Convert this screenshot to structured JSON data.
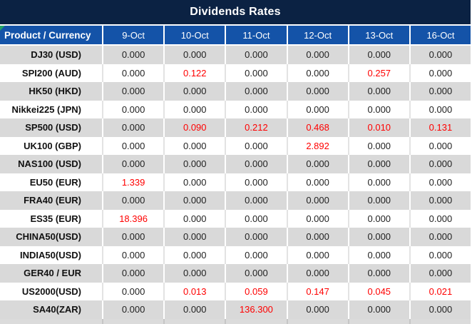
{
  "title": "Dividends Rates",
  "colors": {
    "title_bg": "#0b2243",
    "header_bg": "#1453a8",
    "row_gray_bg": "#d9d9d9",
    "row_white_bg": "#ffffff",
    "highlight_value": "#ff0000",
    "value_text": "#1f1f1f",
    "corner_indicator_green": "#21a366"
  },
  "table": {
    "label_header": "Product / Currency",
    "date_headers": [
      "9-Oct",
      "10-Oct",
      "11-Oct",
      "12-Oct",
      "13-Oct",
      "16-Oct"
    ],
    "rows": [
      {
        "label": "DJ30 (USD)",
        "values": [
          "0.000",
          "0.000",
          "0.000",
          "0.000",
          "0.000",
          "0.000"
        ],
        "red_cols": []
      },
      {
        "label": "SPI200 (AUD)",
        "values": [
          "0.000",
          "0.122",
          "0.000",
          "0.000",
          "0.257",
          "0.000"
        ],
        "red_cols": [
          1,
          4
        ]
      },
      {
        "label": "HK50 (HKD)",
        "values": [
          "0.000",
          "0.000",
          "0.000",
          "0.000",
          "0.000",
          "0.000"
        ],
        "red_cols": []
      },
      {
        "label": "Nikkei225 (JPN)",
        "values": [
          "0.000",
          "0.000",
          "0.000",
          "0.000",
          "0.000",
          "0.000"
        ],
        "red_cols": []
      },
      {
        "label": "SP500 (USD)",
        "values": [
          "0.000",
          "0.090",
          "0.212",
          "0.468",
          "0.010",
          "0.131"
        ],
        "red_cols": [
          1,
          2,
          3,
          4,
          5
        ]
      },
      {
        "label": "UK100 (GBP)",
        "values": [
          "0.000",
          "0.000",
          "0.000",
          "2.892",
          "0.000",
          "0.000"
        ],
        "red_cols": [
          3
        ]
      },
      {
        "label": "NAS100 (USD)",
        "values": [
          "0.000",
          "0.000",
          "0.000",
          "0.000",
          "0.000",
          "0.000"
        ],
        "red_cols": []
      },
      {
        "label": "EU50 (EUR)",
        "values": [
          "1.339",
          "0.000",
          "0.000",
          "0.000",
          "0.000",
          "0.000"
        ],
        "red_cols": [
          0
        ]
      },
      {
        "label": "FRA40 (EUR)",
        "values": [
          "0.000",
          "0.000",
          "0.000",
          "0.000",
          "0.000",
          "0.000"
        ],
        "red_cols": []
      },
      {
        "label": "ES35 (EUR)",
        "values": [
          "18.396",
          "0.000",
          "0.000",
          "0.000",
          "0.000",
          "0.000"
        ],
        "red_cols": [
          0
        ]
      },
      {
        "label": "CHINA50(USD)",
        "values": [
          "0.000",
          "0.000",
          "0.000",
          "0.000",
          "0.000",
          "0.000"
        ],
        "red_cols": []
      },
      {
        "label": "INDIA50(USD)",
        "values": [
          "0.000",
          "0.000",
          "0.000",
          "0.000",
          "0.000",
          "0.000"
        ],
        "red_cols": []
      },
      {
        "label": "GER40 / EUR",
        "values": [
          "0.000",
          "0.000",
          "0.000",
          "0.000",
          "0.000",
          "0.000"
        ],
        "red_cols": []
      },
      {
        "label": "US2000(USD)",
        "values": [
          "0.000",
          "0.013",
          "0.059",
          "0.147",
          "0.045",
          "0.021"
        ],
        "red_cols": [
          1,
          2,
          3,
          4,
          5
        ]
      },
      {
        "label": "SA40(ZAR)",
        "values": [
          "0.000",
          "0.000",
          "136.300",
          "0.000",
          "0.000",
          "0.000"
        ],
        "red_cols": [
          2
        ]
      }
    ]
  }
}
